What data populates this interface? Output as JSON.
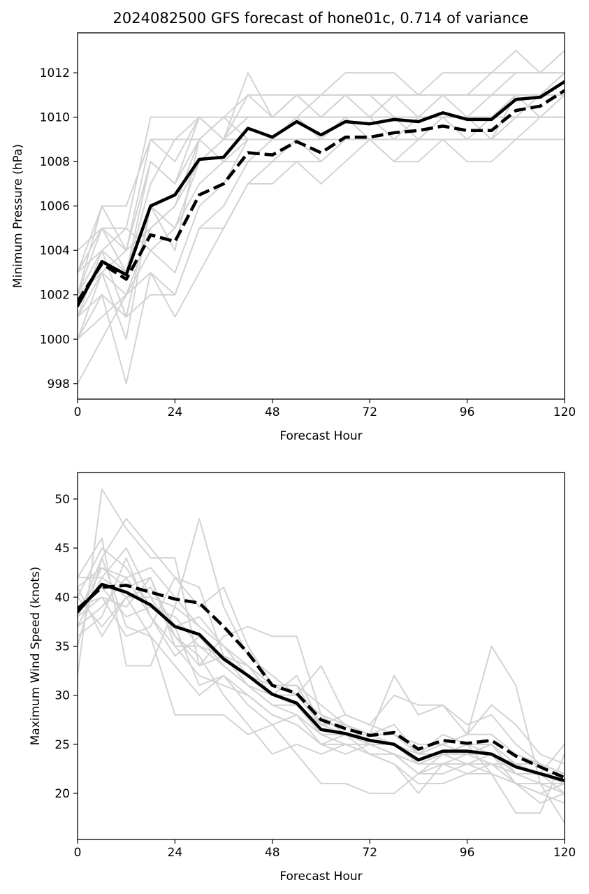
{
  "title": "2024082500 GFS forecast of hone01c, 0.714 of variance",
  "colors": {
    "member": "#d3d3d3",
    "mean": "#000000",
    "background": "#ffffff"
  },
  "chart_data": [
    {
      "type": "line",
      "title": "2024082500 GFS forecast of hone01c, 0.714 of variance",
      "xlabel": "Forecast Hour",
      "ylabel": "Minimum Pressure (hPa)",
      "xlim": [
        0,
        120
      ],
      "ylim": [
        997.3,
        1013.8
      ],
      "xticks": [
        0,
        24,
        48,
        72,
        96,
        120
      ],
      "yticks": [
        998,
        1000,
        1002,
        1004,
        1006,
        1008,
        1010,
        1012
      ],
      "grid": false,
      "x": [
        0,
        6,
        12,
        18,
        24,
        30,
        36,
        42,
        48,
        54,
        60,
        66,
        72,
        78,
        84,
        90,
        96,
        102,
        108,
        114,
        120
      ],
      "series": [
        {
          "style": "solid-black-thick",
          "values": [
            1001.5,
            1003.5,
            1002.9,
            1006.0,
            1006.5,
            1008.1,
            1008.2,
            1009.5,
            1009.1,
            1009.8,
            1009.2,
            1009.8,
            1009.7,
            1009.9,
            1009.8,
            1010.2,
            1009.9,
            1009.9,
            1010.8,
            1010.9,
            1011.6
          ]
        },
        {
          "style": "dashed-black-thick",
          "values": [
            1001.7,
            1003.4,
            1002.7,
            1004.7,
            1004.4,
            1006.5,
            1007.0,
            1008.4,
            1008.3,
            1008.9,
            1008.4,
            1009.1,
            1009.1,
            1009.3,
            1009.4,
            1009.6,
            1009.4,
            1009.4,
            1010.3,
            1010.5,
            1011.2
          ]
        }
      ],
      "members": [
        [
          1004,
          1005,
          1004,
          1008,
          1007,
          1010,
          1009,
          1010,
          1010,
          1010,
          1010,
          1011,
          1011,
          1010,
          1010,
          1011,
          1011,
          1011,
          1012,
          1012,
          1013
        ],
        [
          1003,
          1006,
          1006,
          1009,
          1008,
          1010,
          1010,
          1011,
          1010,
          1011,
          1010,
          1011,
          1010,
          1011,
          1010,
          1011,
          1011,
          1012,
          1013,
          1012,
          1012
        ],
        [
          1002,
          1005,
          1005,
          1010,
          1010,
          1010,
          1009,
          1012,
          1010,
          1011,
          1011,
          1012,
          1012,
          1012,
          1011,
          1012,
          1012,
          1012,
          1012,
          1012,
          1012
        ],
        [
          1001,
          1004,
          1003,
          1007,
          1009,
          1009,
          1010,
          1010,
          1010,
          1010,
          1011,
          1011,
          1011,
          1011,
          1011,
          1011,
          1010,
          1010,
          1011,
          1011,
          1012
        ],
        [
          1000,
          1003,
          1002,
          1005,
          1006,
          1008,
          1009,
          1010,
          1010,
          1011,
          1010,
          1010,
          1010,
          1010,
          1010,
          1010,
          1010,
          1011,
          1011,
          1011,
          1011
        ],
        [
          998,
          1000,
          1002,
          1004,
          1003,
          1006,
          1007,
          1009,
          1009,
          1009,
          1009,
          1010,
          1010,
          1009,
          1010,
          1010,
          1010,
          1010,
          1010,
          1010,
          1011
        ],
        [
          1002,
          1003,
          1000,
          1006,
          1005,
          1007,
          1008,
          1008,
          1009,
          1009,
          1008,
          1009,
          1009,
          1008,
          1009,
          1009,
          1009,
          1009,
          1009,
          1009,
          1009
        ],
        [
          1001,
          1002,
          998,
          1003,
          1001,
          1003,
          1005,
          1007,
          1007,
          1008,
          1007,
          1008,
          1009,
          1009,
          1009,
          1009,
          1008,
          1008,
          1009,
          1010,
          1010
        ],
        [
          1002,
          1004,
          1001,
          1006,
          1004,
          1009,
          1008,
          1009,
          1009,
          1010,
          1009,
          1009,
          1009,
          1008,
          1008,
          1009,
          1009,
          1009,
          1010,
          1010,
          1010
        ],
        [
          1000,
          1001,
          1002,
          1003,
          1002,
          1005,
          1005,
          1007,
          1008,
          1009,
          1008,
          1009,
          1009,
          1009,
          1009,
          1009,
          1009,
          1009,
          1009,
          1009,
          1009
        ],
        [
          1003,
          1005,
          1003,
          1008,
          1007,
          1009,
          1010,
          1010,
          1010,
          1010,
          1010,
          1010,
          1010,
          1010,
          1010,
          1010,
          1010,
          1010,
          1010,
          1010,
          1010
        ],
        [
          1002,
          1006,
          1004,
          1009,
          1009,
          1010,
          1009,
          1011,
          1011,
          1011,
          1011,
          1011,
          1011,
          1011,
          1011,
          1011,
          1011,
          1011,
          1011,
          1011,
          1011
        ],
        [
          1001,
          1003,
          1004,
          1005,
          1006,
          1009,
          1010,
          1009,
          1009,
          1010,
          1009,
          1010,
          1010,
          1010,
          1009,
          1010,
          1010,
          1009,
          1011,
          1010,
          1010
        ],
        [
          1000,
          1002,
          1001,
          1002,
          1002,
          1005,
          1006,
          1008,
          1008,
          1008,
          1008,
          1009,
          1009,
          1009,
          1009,
          1009,
          1009,
          1010,
          1010,
          1011,
          1012
        ],
        [
          1003,
          1004,
          1005,
          1004,
          1005,
          1008,
          1009,
          1009,
          1009,
          1009,
          1009,
          1010,
          1009,
          1009,
          1009,
          1010,
          1009,
          1009,
          1010,
          1010,
          1011
        ]
      ]
    },
    {
      "type": "line",
      "xlabel": "Forecast Hour",
      "ylabel": "Maximum Wind Speed (knots)",
      "xlim": [
        0,
        120
      ],
      "ylim": [
        15.3,
        52.7
      ],
      "xticks": [
        0,
        24,
        48,
        72,
        96,
        120
      ],
      "yticks": [
        20,
        25,
        30,
        35,
        40,
        45,
        50
      ],
      "grid": false,
      "x": [
        0,
        6,
        12,
        18,
        24,
        30,
        36,
        42,
        48,
        54,
        60,
        66,
        72,
        78,
        84,
        90,
        96,
        102,
        108,
        114,
        120
      ],
      "series": [
        {
          "style": "solid-black-thick",
          "values": [
            38.5,
            41.3,
            40.5,
            39.2,
            37.0,
            36.2,
            33.7,
            32.0,
            30.1,
            29.2,
            26.5,
            26.1,
            25.4,
            25.0,
            23.4,
            24.3,
            24.3,
            24.0,
            22.7,
            22.0,
            21.3
          ]
        },
        {
          "style": "dashed-black-thick",
          "values": [
            38.8,
            41.0,
            41.2,
            40.5,
            39.8,
            39.4,
            37.0,
            34.3,
            31.0,
            30.2,
            27.5,
            26.6,
            25.9,
            26.2,
            24.5,
            25.4,
            25.1,
            25.4,
            23.8,
            22.7,
            21.6
          ]
        }
      ],
      "members": [
        [
          32,
          51,
          47,
          44,
          44,
          33,
          36,
          37,
          36,
          36,
          28,
          27,
          26,
          32,
          28,
          29,
          26,
          35,
          31,
          21,
          17
        ],
        [
          42,
          46,
          33,
          33,
          39,
          48,
          39,
          34,
          32,
          30,
          33,
          28,
          27,
          30,
          29,
          29,
          27,
          28,
          25,
          23,
          22
        ],
        [
          38,
          44,
          48,
          45,
          42,
          39,
          41,
          35,
          31,
          31,
          29,
          27,
          26,
          25,
          24,
          25,
          26,
          29,
          27,
          24,
          23
        ],
        [
          37,
          42,
          40,
          36,
          28,
          28,
          28,
          26,
          27,
          24,
          21,
          21,
          20,
          20,
          22,
          22,
          23,
          22,
          18,
          18,
          24
        ],
        [
          40,
          45,
          43,
          39,
          37,
          31,
          32,
          30,
          28,
          27,
          25,
          24,
          25,
          24,
          22,
          24,
          25,
          22,
          21,
          19,
          20
        ],
        [
          36,
          38,
          44,
          38,
          35,
          35,
          33,
          31,
          29,
          28,
          25,
          26,
          25,
          24,
          23,
          23,
          24,
          24,
          21,
          20,
          19
        ],
        [
          41,
          43,
          41,
          42,
          36,
          34,
          30,
          27,
          24,
          25,
          24,
          25,
          24,
          23,
          21,
          21,
          22,
          22,
          21,
          21,
          21
        ],
        [
          39,
          40,
          36,
          37,
          42,
          41,
          34,
          33,
          31,
          30,
          27,
          27,
          25,
          25,
          23,
          24,
          24,
          23,
          23,
          22,
          25
        ],
        [
          42,
          42,
          45,
          40,
          39,
          37,
          35,
          33,
          30,
          30,
          28,
          26,
          26,
          26,
          25,
          25,
          24,
          25,
          22,
          22,
          20
        ],
        [
          38,
          40,
          39,
          42,
          35,
          32,
          31,
          30,
          28,
          27,
          25,
          25,
          24,
          24,
          22,
          23,
          22,
          23,
          21,
          20,
          21
        ],
        [
          35,
          44,
          37,
          36,
          33,
          30,
          32,
          29,
          27,
          28,
          26,
          26,
          24,
          23,
          20,
          23,
          23,
          24,
          22,
          22,
          22
        ],
        [
          40,
          37,
          40,
          41,
          37,
          38,
          35,
          32,
          30,
          32,
          27,
          28,
          27,
          26,
          24,
          25,
          26,
          26,
          24,
          23,
          22
        ],
        [
          37,
          39,
          42,
          38,
          34,
          36,
          33,
          31,
          29,
          29,
          26,
          25,
          25,
          25,
          23,
          24,
          24,
          24,
          23,
          22,
          21
        ],
        [
          39,
          41,
          38,
          39,
          38,
          35,
          34,
          32,
          31,
          31,
          27,
          27,
          26,
          27,
          24,
          26,
          25,
          25,
          23,
          23,
          22
        ],
        [
          41,
          36,
          40,
          40,
          36,
          33,
          34,
          31,
          30,
          29,
          27,
          26,
          25,
          24,
          23,
          24,
          23,
          23,
          22,
          21,
          20
        ],
        [
          38,
          43,
          42,
          43,
          40,
          37,
          35,
          33,
          31,
          30,
          28,
          27,
          26,
          26,
          24,
          24,
          25,
          24,
          23,
          22,
          22
        ]
      ]
    }
  ]
}
